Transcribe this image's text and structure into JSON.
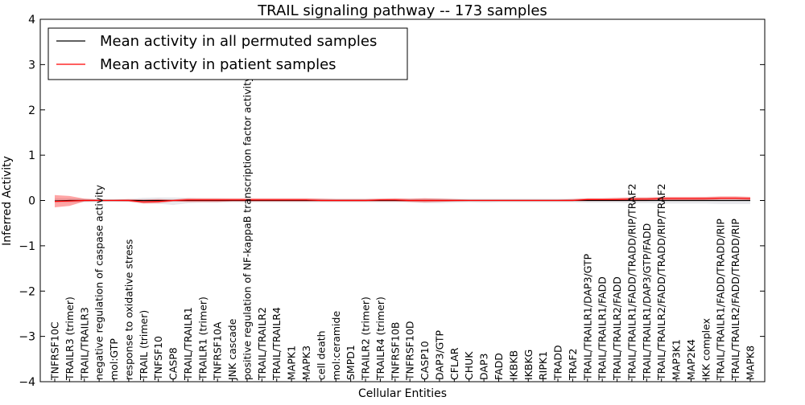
{
  "chart_data": {
    "type": "line",
    "title": "TRAIL signaling pathway -- 173 samples",
    "xlabel": "Cellular Entities",
    "ylabel": "Inferred Activity",
    "ylim": [
      -4,
      4
    ],
    "yticks": [
      -4,
      -3,
      -2,
      -1,
      0,
      1,
      2,
      3,
      4
    ],
    "grid": false,
    "legend_position": "top-left",
    "categories": [
      "TNFRSF10C",
      "TRAILR3 (trimer)",
      "TRAIL/TRAILR3",
      "negative regulation of caspase activity",
      "mol:GTP",
      "response to oxidative stress",
      "TRAIL (trimer)",
      "TNFSF10",
      "CASP8",
      "TRAIL/TRAILR1",
      "TRAILR1 (trimer)",
      "TNFRSF10A",
      "JNK cascade",
      "positive regulation of NF-kappaB transcription factor activity",
      "TRAIL/TRAILR2",
      "TRAIL/TRAILR4",
      "MAPK1",
      "MAPK3",
      "cell death",
      "mol:ceramide",
      "SMPD1",
      "TRAILR2 (trimer)",
      "TRAILR4 (trimer)",
      "TNFRSF10B",
      "TNFRSF10D",
      "CASP10",
      "DAP3/GTP",
      "CFLAR",
      "CHUK",
      "DAP3",
      "FADD",
      "IKBKB",
      "IKBKG",
      "RIPK1",
      "TRADD",
      "TRAF2",
      "TRAIL/TRAILR1/DAP3/GTP",
      "TRAIL/TRAILR1/FADD",
      "TRAIL/TRAILR2/FADD",
      "TRAIL/TRAILR1/FADD/TRADD/RIP/TRAF2",
      "TRAIL/TRAILR1/DAP3/GTP/FADD",
      "TRAIL/TRAILR2/FADD/TRADD/RIP/TRAF2",
      "MAP3K1",
      "MAP2K4",
      "IKK complex",
      "TRAIL/TRAILR1/FADD/TRADD/RIP",
      "TRAIL/TRAILR2/FADD/TRADD/RIP",
      "MAPK8"
    ],
    "series": [
      {
        "name": "Mean activity in all permuted samples",
        "color": "#000000",
        "values": [
          -0.01,
          0,
          0,
          0,
          0,
          0,
          0,
          0,
          0,
          0,
          0,
          0,
          0,
          0,
          0,
          0,
          0,
          0,
          0,
          0,
          0,
          0,
          0,
          0,
          0,
          0,
          0,
          0,
          0,
          0,
          0,
          0,
          0,
          0,
          0,
          0,
          0,
          0,
          0,
          0,
          0,
          0,
          0,
          0,
          0,
          0,
          0,
          0
        ],
        "band_lower": [
          -0.05,
          -0.05,
          -0.04,
          -0.03,
          -0.03,
          -0.03,
          -0.06,
          -0.07,
          -0.1,
          -0.06,
          -0.05,
          -0.05,
          -0.04,
          -0.04,
          -0.04,
          -0.04,
          -0.04,
          -0.04,
          -0.04,
          -0.04,
          -0.04,
          -0.04,
          -0.04,
          -0.04,
          -0.04,
          -0.06,
          -0.06,
          -0.05,
          -0.04,
          -0.05,
          -0.04,
          -0.04,
          -0.04,
          -0.04,
          -0.04,
          -0.04,
          -0.05,
          -0.05,
          -0.05,
          -0.06,
          -0.06,
          -0.07,
          -0.07,
          -0.07,
          -0.07,
          -0.08,
          -0.08,
          -0.08
        ],
        "band_upper": [
          0.05,
          0.05,
          0.04,
          0.03,
          0.03,
          0.03,
          0.06,
          0.07,
          0.07,
          0.06,
          0.05,
          0.05,
          0.04,
          0.04,
          0.04,
          0.04,
          0.04,
          0.04,
          0.04,
          0.04,
          0.04,
          0.04,
          0.04,
          0.04,
          0.04,
          0.05,
          0.05,
          0.04,
          0.04,
          0.04,
          0.04,
          0.04,
          0.04,
          0.04,
          0.04,
          0.04,
          0.05,
          0.05,
          0.05,
          0.06,
          0.06,
          0.06,
          0.06,
          0.06,
          0.07,
          0.07,
          0.07,
          0.07
        ]
      },
      {
        "name": "Mean activity in patient samples",
        "color": "#ff0000",
        "values": [
          -0.02,
          -0.01,
          0,
          0,
          0,
          0,
          -0.03,
          -0.02,
          0,
          0.01,
          0.01,
          0.01,
          0.01,
          0.01,
          0.01,
          0.01,
          0.01,
          0.01,
          0,
          0,
          0,
          0,
          0.01,
          0.01,
          0,
          0,
          0,
          0,
          0,
          0,
          0,
          0,
          0,
          0,
          0,
          0,
          0.02,
          0.02,
          0.02,
          0.03,
          0.03,
          0.04,
          0.04,
          0.04,
          0.04,
          0.05,
          0.05,
          0.04
        ],
        "band_lower": [
          -0.15,
          -0.12,
          -0.02,
          -0.01,
          -0.01,
          -0.02,
          -0.07,
          -0.06,
          -0.02,
          -0.03,
          -0.03,
          -0.03,
          -0.02,
          -0.02,
          -0.02,
          -0.02,
          -0.02,
          -0.02,
          -0.02,
          -0.02,
          -0.02,
          -0.02,
          -0.02,
          -0.02,
          -0.03,
          -0.04,
          -0.03,
          -0.02,
          -0.01,
          -0.01,
          -0.01,
          -0.01,
          -0.01,
          -0.01,
          -0.01,
          -0.01,
          -0.01,
          -0.01,
          -0.01,
          -0.01,
          -0.01,
          0,
          0,
          0,
          0.01,
          0.02,
          0.02,
          0.01
        ],
        "band_upper": [
          0.12,
          0.1,
          0.04,
          0.02,
          0.02,
          0.03,
          0.02,
          0.03,
          0.02,
          0.05,
          0.05,
          0.05,
          0.05,
          0.05,
          0.05,
          0.05,
          0.05,
          0.05,
          0.04,
          0.03,
          0.03,
          0.03,
          0.04,
          0.05,
          0.04,
          0.05,
          0.04,
          0.03,
          0.02,
          0.02,
          0.02,
          0.02,
          0.02,
          0.02,
          0.02,
          0.03,
          0.05,
          0.05,
          0.06,
          0.07,
          0.07,
          0.08,
          0.08,
          0.08,
          0.08,
          0.09,
          0.09,
          0.08
        ]
      }
    ]
  }
}
